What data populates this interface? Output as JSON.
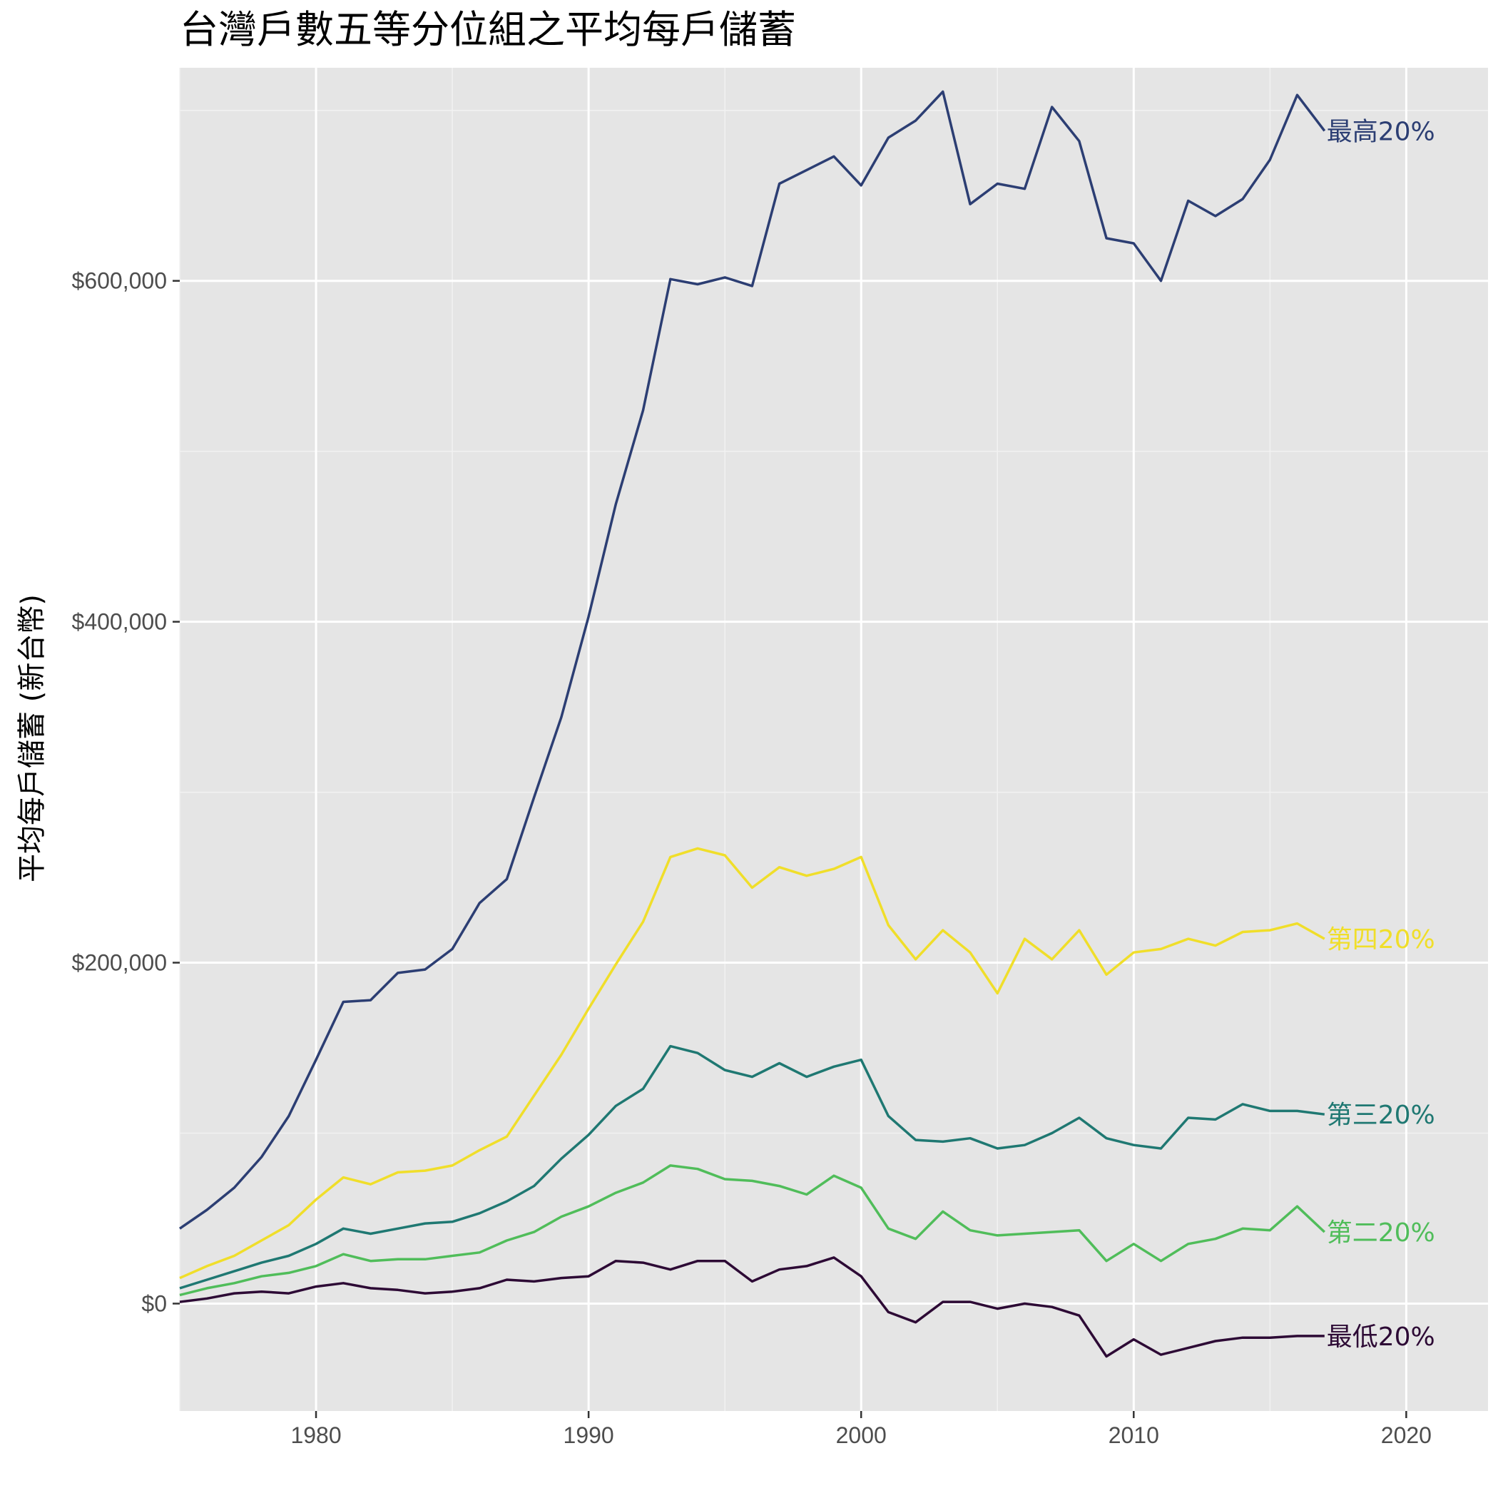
{
  "chart_data": {
    "type": "line",
    "title": "台灣戶數五等分位組之平均每戶儲蓄",
    "xlabel": "",
    "ylabel": "平均每戶儲蓄 (新台幣)",
    "xlim": [
      1975,
      2023
    ],
    "ylim": [
      -63000,
      725000
    ],
    "x_ticks": [
      1980,
      1990,
      2000,
      2010,
      2020
    ],
    "x_tick_labels": [
      "1980",
      "1990",
      "2000",
      "2010",
      "2020"
    ],
    "y_ticks": [
      0,
      200000,
      400000,
      600000
    ],
    "y_tick_labels": [
      "$0",
      "$200,000",
      "$400,000",
      "$600,000"
    ],
    "grid": true,
    "legend": "direct labels at line ends",
    "x": [
      1975,
      1976,
      1977,
      1978,
      1979,
      1980,
      1981,
      1982,
      1983,
      1984,
      1985,
      1986,
      1987,
      1988,
      1989,
      1990,
      1991,
      1992,
      1993,
      1994,
      1995,
      1996,
      1997,
      1998,
      1999,
      2000,
      2001,
      2002,
      2003,
      2004,
      2005,
      2006,
      2007,
      2008,
      2009,
      2010,
      2011,
      2012,
      2013,
      2014,
      2015,
      2016,
      2017
    ],
    "series": [
      {
        "name": "最高20%",
        "color": "#2c3e73",
        "values": [
          44000,
          55000,
          68000,
          86000,
          110000,
          143000,
          177000,
          178000,
          194000,
          196000,
          208000,
          235000,
          249000,
          297000,
          344000,
          403000,
          469000,
          524000,
          601000,
          598000,
          602000,
          597000,
          657000,
          665000,
          673000,
          656000,
          684000,
          694000,
          711000,
          645000,
          657000,
          654000,
          702000,
          682000,
          625000,
          622000,
          600000,
          647000,
          638000,
          648000,
          671000,
          709000,
          688000
        ]
      },
      {
        "name": "第四20%",
        "color": "#f0de2a",
        "values": [
          15000,
          22000,
          28000,
          37000,
          46000,
          61000,
          74000,
          70000,
          77000,
          78000,
          81000,
          90000,
          98000,
          122000,
          146000,
          173000,
          199000,
          224000,
          262000,
          267000,
          263000,
          244000,
          256000,
          251000,
          255000,
          262000,
          222000,
          202000,
          219000,
          206000,
          182000,
          214000,
          202000,
          219000,
          193000,
          206000,
          208000,
          214000,
          210000,
          218000,
          219000,
          223000,
          214000
        ]
      },
      {
        "name": "第三20%",
        "color": "#1f7872",
        "values": [
          9000,
          14000,
          19000,
          24000,
          28000,
          35000,
          44000,
          41000,
          44000,
          47000,
          48000,
          53000,
          60000,
          69000,
          85000,
          99000,
          116000,
          126000,
          151000,
          147000,
          137000,
          133000,
          141000,
          133000,
          139000,
          143000,
          110000,
          96000,
          95000,
          97000,
          91000,
          93000,
          100000,
          109000,
          97000,
          93000,
          91000,
          109000,
          108000,
          117000,
          113000,
          113000,
          111000
        ]
      },
      {
        "name": "第二20%",
        "color": "#50bd5a",
        "values": [
          5000,
          9000,
          12000,
          16000,
          18000,
          22000,
          29000,
          25000,
          26000,
          26000,
          28000,
          30000,
          37000,
          42000,
          51000,
          57000,
          65000,
          71000,
          81000,
          79000,
          73000,
          72000,
          69000,
          64000,
          75000,
          68000,
          44000,
          38000,
          54000,
          43000,
          40000,
          41000,
          42000,
          43000,
          25000,
          35000,
          25000,
          35000,
          38000,
          44000,
          43000,
          57000,
          42000
        ]
      },
      {
        "name": "最低20%",
        "color": "#2d0a35",
        "values": [
          1000,
          3000,
          6000,
          7000,
          6000,
          10000,
          12000,
          9000,
          8000,
          6000,
          7000,
          9000,
          14000,
          13000,
          15000,
          16000,
          25000,
          24000,
          20000,
          25000,
          25000,
          13000,
          20000,
          22000,
          27000,
          16000,
          -5000,
          -11000,
          1000,
          1000,
          -3000,
          0,
          -2000,
          -7000,
          -31000,
          -21000,
          -30000,
          -26000,
          -22000,
          -20000,
          -20000,
          -19000,
          -19000
        ]
      }
    ]
  }
}
